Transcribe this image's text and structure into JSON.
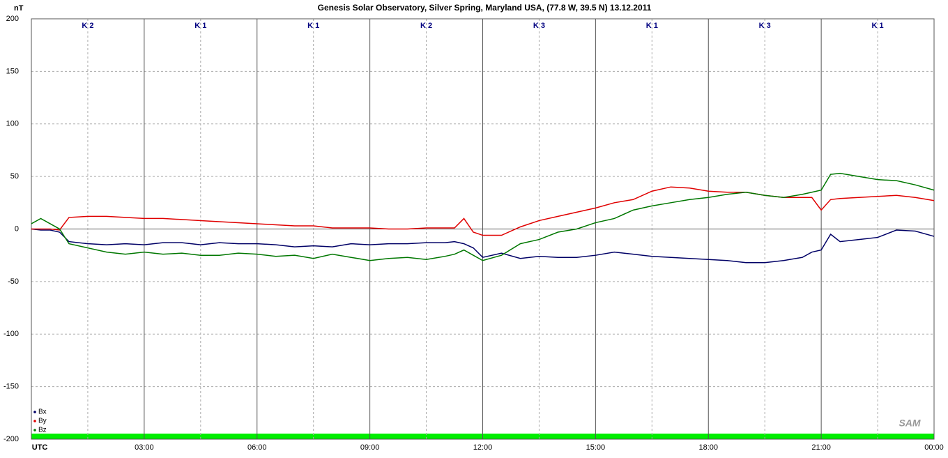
{
  "chart_data": {
    "type": "line",
    "title": "Genesis Solar Observatory, Silver Spring, Maryland USA, (77.8 W, 39.5 N)  13.12.2011",
    "y_label": "nT",
    "logo": "SAM",
    "k_indices": [
      "K 2",
      "K 1",
      "K 1",
      "K 2",
      "K 3",
      "K 1",
      "K 3",
      "K 1"
    ],
    "x": [
      0,
      0.25,
      0.5,
      0.75,
      1,
      1.5,
      2,
      2.5,
      3,
      3.5,
      4,
      4.5,
      5,
      5.5,
      6,
      6.5,
      7,
      7.5,
      8,
      8.5,
      9,
      9.5,
      10,
      10.5,
      11,
      11.25,
      11.5,
      11.75,
      12,
      12.5,
      13,
      13.5,
      14,
      14.5,
      15,
      15.5,
      16,
      16.5,
      17,
      17.5,
      18,
      18.5,
      19,
      19.5,
      20,
      20.5,
      20.75,
      21,
      21.25,
      21.5,
      22,
      22.5,
      23,
      23.5,
      24
    ],
    "series": [
      {
        "name": "Bx",
        "color": "#000066",
        "values": [
          0,
          -1,
          -1,
          -3,
          -12,
          -14,
          -15,
          -14,
          -15,
          -13,
          -13,
          -15,
          -13,
          -14,
          -14,
          -15,
          -17,
          -16,
          -17,
          -14,
          -15,
          -14,
          -14,
          -13,
          -13,
          -12,
          -14,
          -18,
          -27,
          -23,
          -28,
          -26,
          -27,
          -27,
          -25,
          -22,
          -24,
          -26,
          -27,
          -28,
          -29,
          -30,
          -32,
          -32,
          -30,
          -27,
          -22,
          -20,
          -5,
          -12,
          -10,
          -8,
          -1,
          -2,
          -7
        ]
      },
      {
        "name": "By",
        "color": "#e00000",
        "values": [
          0,
          0,
          0,
          -1,
          11,
          12,
          12,
          11,
          10,
          10,
          9,
          8,
          7,
          6,
          5,
          4,
          3,
          3,
          1,
          1,
          1,
          0,
          0,
          1,
          1,
          1,
          10,
          -3,
          -6,
          -6,
          2,
          8,
          12,
          16,
          20,
          25,
          28,
          36,
          40,
          39,
          36,
          35,
          35,
          32,
          30,
          30,
          30,
          18,
          28,
          29,
          30,
          31,
          32,
          30,
          27
        ]
      },
      {
        "name": "Bz",
        "color": "#007700",
        "values": [
          5,
          10,
          5,
          0,
          -14,
          -18,
          -22,
          -24,
          -22,
          -24,
          -23,
          -25,
          -25,
          -23,
          -24,
          -26,
          -25,
          -28,
          -24,
          -27,
          -30,
          -28,
          -27,
          -29,
          -26,
          -24,
          -20,
          -25,
          -30,
          -25,
          -14,
          -10,
          -3,
          0,
          6,
          10,
          18,
          22,
          25,
          28,
          30,
          33,
          35,
          32,
          30,
          33,
          35,
          37,
          52,
          53,
          50,
          47,
          46,
          42,
          37
        ]
      }
    ],
    "xlim": [
      0,
      24
    ],
    "ylim": [
      -200,
      200
    ],
    "yticks": [
      200,
      150,
      100,
      50,
      0,
      -50,
      -100,
      -150,
      -200
    ],
    "xticks": [
      {
        "value": 0,
        "label": "UTC"
      },
      {
        "value": 3,
        "label": "03:00"
      },
      {
        "value": 6,
        "label": "06:00"
      },
      {
        "value": 9,
        "label": "09:00"
      },
      {
        "value": 12,
        "label": "12:00"
      },
      {
        "value": 15,
        "label": "15:00"
      },
      {
        "value": 18,
        "label": "18:00"
      },
      {
        "value": 21,
        "label": "21:00"
      },
      {
        "value": 24,
        "label": "00:00"
      }
    ],
    "grid": true,
    "legend": "lower left"
  }
}
